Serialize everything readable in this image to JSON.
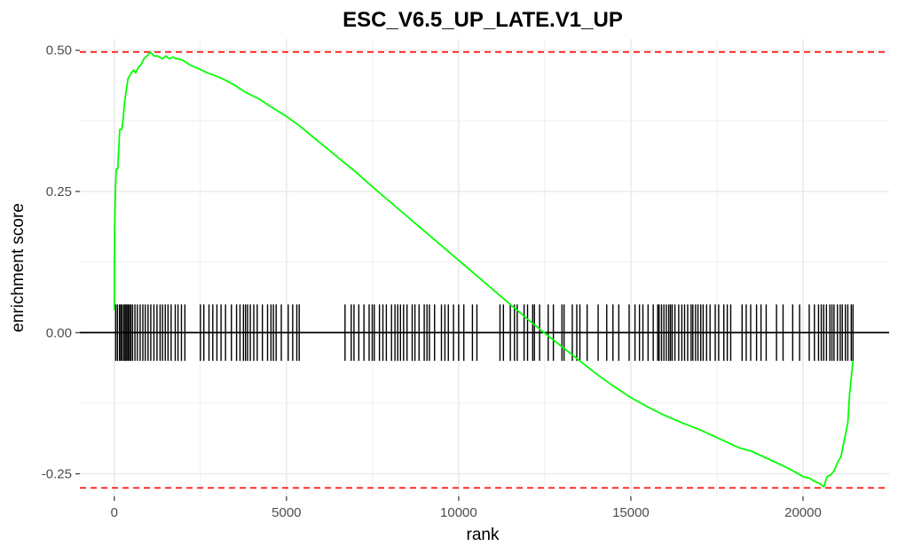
{
  "chart_data": {
    "type": "line",
    "title": "ESC_V6.5_UP_LATE.V1_UP",
    "xlabel": "rank",
    "ylabel": "enrichment score",
    "xlim": [
      -1000,
      22500
    ],
    "ylim": [
      -0.29,
      0.52
    ],
    "x_ticks": [
      0,
      5000,
      10000,
      15000,
      20000
    ],
    "x_tick_labels": [
      "0",
      "5000",
      "10000",
      "15000",
      "20000"
    ],
    "y_ticks": [
      -0.25,
      0,
      0.25,
      0.5
    ],
    "y_tick_labels": [
      "-0.25",
      "0.00",
      "0.25",
      "0.50"
    ],
    "grid": true,
    "colors": {
      "curve": "#00ff00",
      "reference": "#ff0000",
      "hits": "#000000",
      "grid": "#ebebeb"
    },
    "reference_lines": [
      0.497,
      -0.275
    ],
    "series": [
      {
        "x": [
          0,
          10,
          30,
          60,
          100,
          160,
          180,
          220,
          260,
          300,
          350,
          400,
          450,
          500,
          560,
          620,
          700,
          780,
          860,
          950,
          1050,
          1150,
          1250,
          1400,
          1500,
          1600,
          1700,
          1800,
          1900,
          2000,
          2100,
          2200,
          2350,
          2500,
          2700,
          2900,
          3200,
          3500,
          3800,
          4200,
          4600,
          5000,
          5400,
          5800,
          6200,
          6600,
          7000,
          7500,
          8000,
          8500,
          9000,
          9500,
          10000,
          10500,
          11000,
          11500,
          12000,
          12500,
          13000,
          13500,
          14000,
          14500,
          15000,
          15500,
          16000,
          16500,
          17000,
          17500,
          18000,
          18200,
          18500,
          19000,
          19500,
          19800,
          20000,
          20200,
          20300,
          20500,
          20600,
          20700,
          20800,
          20900,
          21000,
          21100,
          21200,
          21300,
          21350,
          21400,
          21450
        ],
        "y": [
          0.04,
          0.18,
          0.25,
          0.29,
          0.29,
          0.36,
          0.36,
          0.36,
          0.38,
          0.41,
          0.43,
          0.45,
          0.455,
          0.46,
          0.465,
          0.46,
          0.47,
          0.475,
          0.485,
          0.49,
          0.497,
          0.49,
          0.49,
          0.485,
          0.49,
          0.485,
          0.488,
          0.485,
          0.484,
          0.482,
          0.478,
          0.474,
          0.47,
          0.466,
          0.46,
          0.456,
          0.448,
          0.438,
          0.426,
          0.414,
          0.398,
          0.383,
          0.365,
          0.345,
          0.325,
          0.305,
          0.285,
          0.258,
          0.232,
          0.206,
          0.18,
          0.154,
          0.128,
          0.102,
          0.076,
          0.05,
          0.024,
          -0.001,
          -0.025,
          -0.049,
          -0.073,
          -0.095,
          -0.115,
          -0.132,
          -0.147,
          -0.16,
          -0.172,
          -0.186,
          -0.2,
          -0.205,
          -0.21,
          -0.224,
          -0.238,
          -0.248,
          -0.255,
          -0.258,
          -0.262,
          -0.268,
          -0.273,
          -0.255,
          -0.252,
          -0.245,
          -0.23,
          -0.22,
          -0.19,
          -0.16,
          -0.11,
          -0.08,
          -0.05
        ]
      }
    ],
    "hit_ranks": [
      40,
      90,
      150,
      190,
      230,
      280,
      320,
      360,
      400,
      440,
      480,
      530,
      600,
      670,
      750,
      830,
      900,
      980,
      1060,
      1150,
      1240,
      1330,
      1400,
      1480,
      1560,
      1650,
      1770,
      1850,
      1950,
      2050,
      2500,
      2600,
      2750,
      2860,
      2980,
      3100,
      3230,
      3400,
      3550,
      3650,
      3750,
      3810,
      3870,
      3950,
      4050,
      4150,
      4300,
      4450,
      4550,
      4620,
      4700,
      4850,
      5050,
      5180,
      5300,
      5370,
      6700,
      6880,
      6960,
      7100,
      7250,
      7400,
      7490,
      7550,
      7700,
      7800,
      7900,
      8050,
      8150,
      8230,
      8310,
      8400,
      8500,
      8650,
      8730,
      8850,
      9000,
      9080,
      9150,
      9300,
      9500,
      9600,
      9700,
      9850,
      10000,
      10150,
      10400,
      10530,
      11200,
      11300,
      11500,
      11620,
      11700,
      11900,
      12000,
      12150,
      12200,
      12350,
      12600,
      12750,
      13000,
      13060,
      13300,
      13430,
      13520,
      13730,
      14050,
      14300,
      14480,
      14650,
      14950,
      15120,
      15250,
      15350,
      15500,
      15650,
      15780,
      15820,
      15890,
      15960,
      16030,
      16100,
      16150,
      16200,
      16280,
      16390,
      16480,
      16560,
      16650,
      16750,
      16800,
      16880,
      16950,
      17030,
      17100,
      17200,
      17300,
      17450,
      17550,
      17700,
      17800,
      17900,
      18230,
      18350,
      18480,
      18650,
      18780,
      18930,
      19230,
      19420,
      19700,
      19900,
      20180,
      20330,
      20450,
      20530,
      20600,
      20680,
      20780,
      20840,
      20900,
      21000,
      21080,
      21140,
      21230,
      21300,
      21400,
      21450
    ],
    "hit_band": [
      -0.05,
      0.05
    ]
  }
}
